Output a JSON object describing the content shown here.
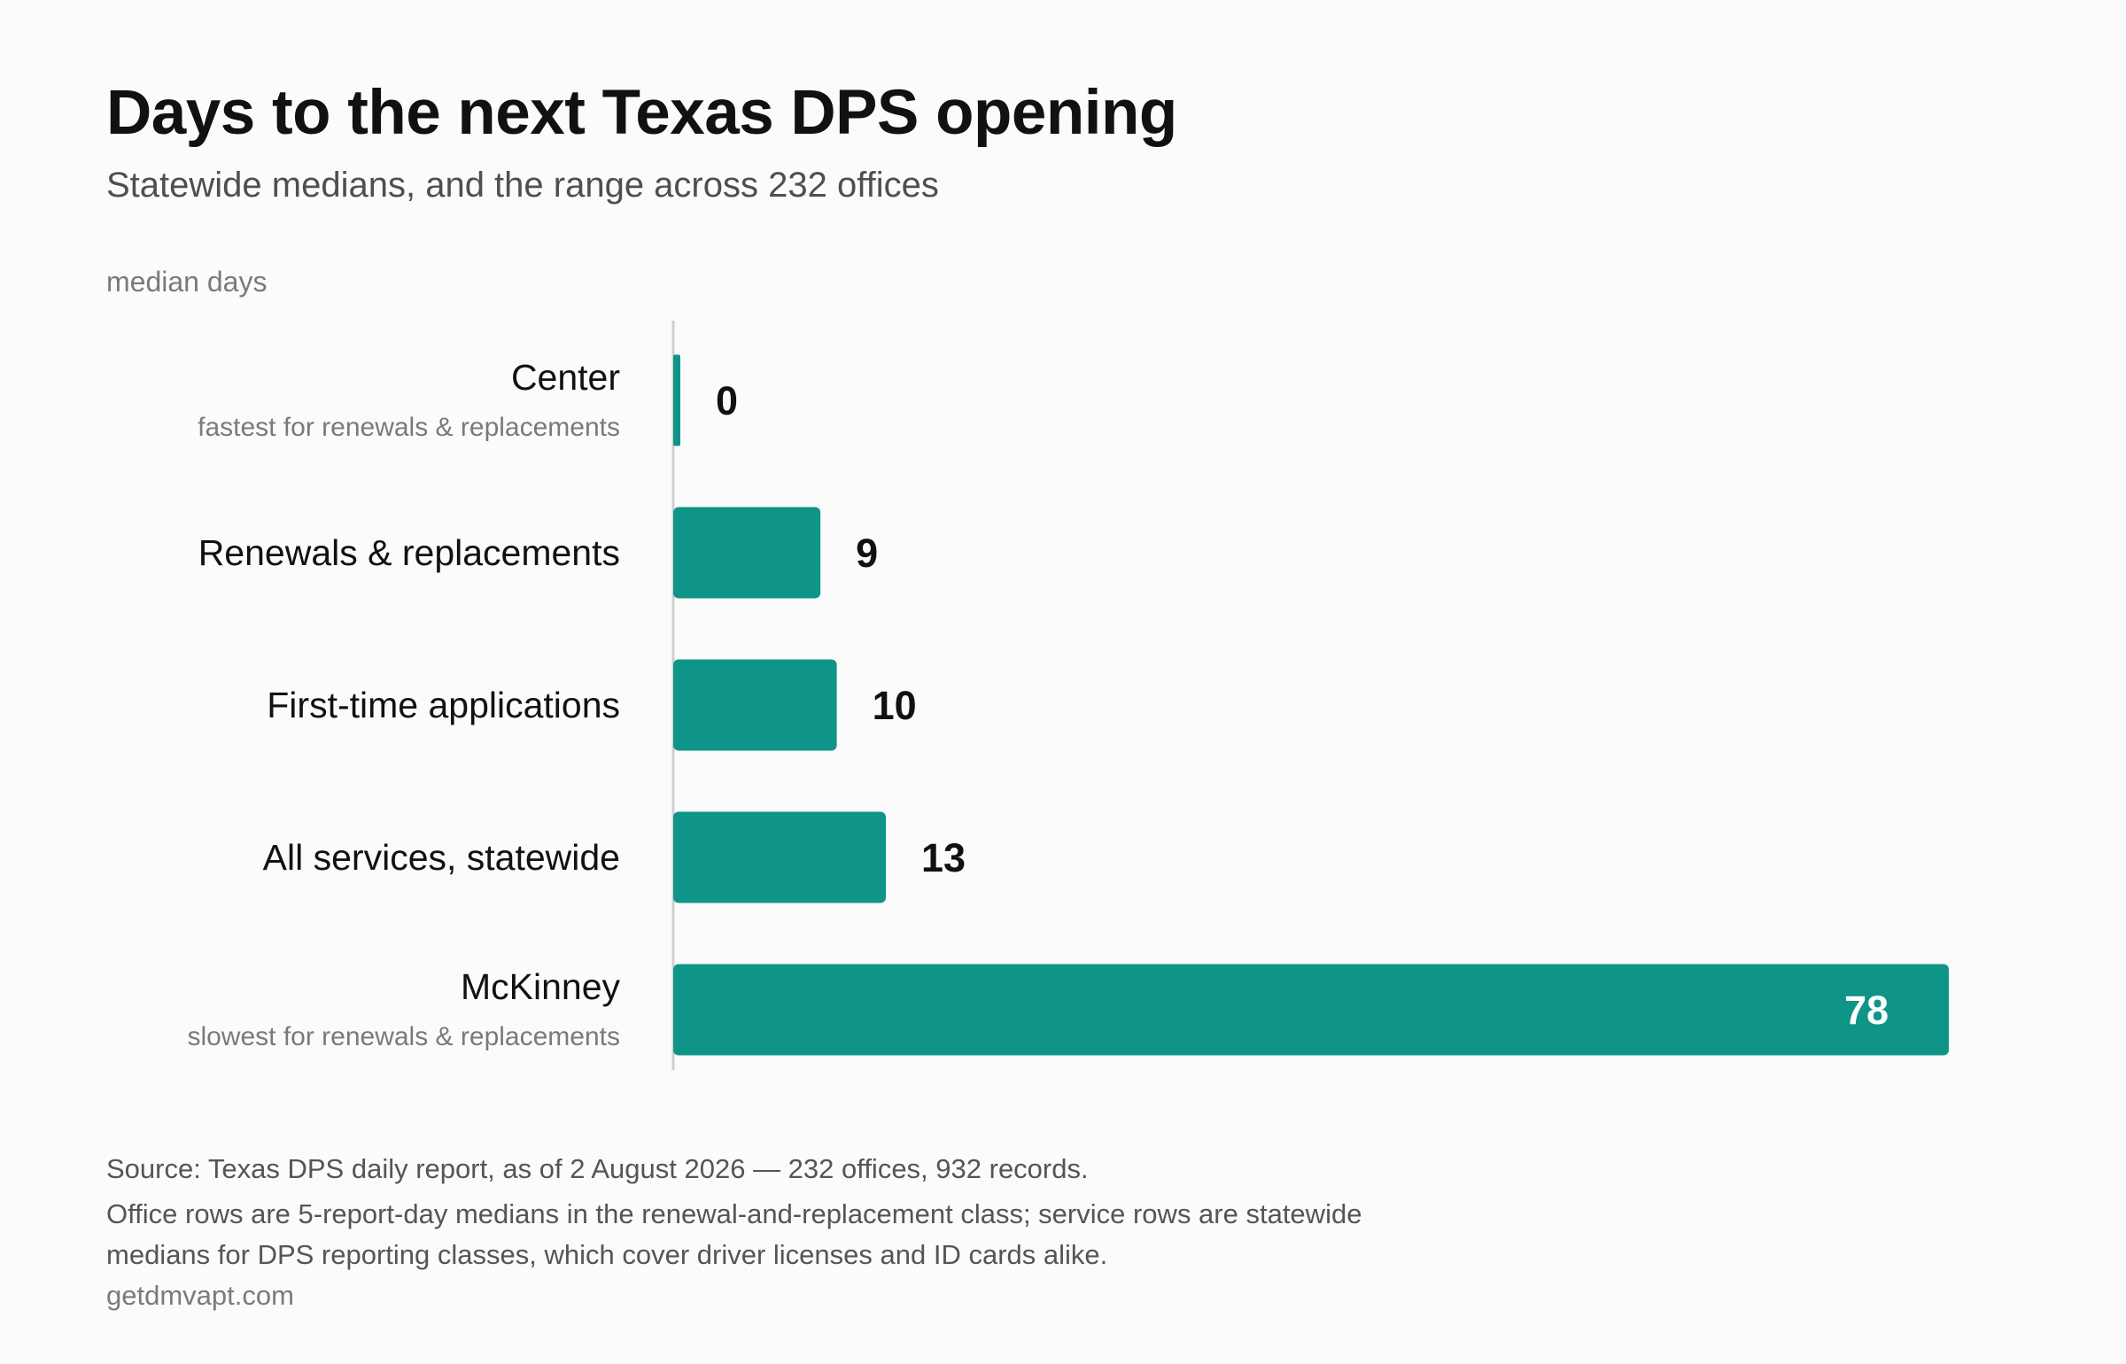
{
  "title": "Days to the next Texas DPS opening",
  "subtitle": "Statewide medians, and the range across 232 offices",
  "colors": {
    "bar": "#0e9587",
    "label": "#111111",
    "sublabel": "#7a7a7a",
    "axis": "#cfcfcf",
    "inside_label": "#ffffff"
  },
  "chart_data": {
    "type": "bar",
    "orientation": "horizontal",
    "ylabel": "median days",
    "categories": [
      "Center",
      "Renewals & replacements",
      "First-time applications",
      "All services, statewide",
      "McKinney"
    ],
    "category_notes": [
      "fastest for renewals & replacements",
      "",
      "",
      "",
      "slowest for renewals & replacements"
    ],
    "values": [
      0,
      9,
      10,
      13,
      78
    ],
    "value_labels": [
      "0",
      "9",
      "10",
      "13",
      "78"
    ],
    "xlim": [
      0,
      78
    ],
    "grid": false,
    "legend": "none"
  },
  "footer": {
    "source": "Source: Texas DPS daily report, as of 2 August 2026 — 232 offices, 932 records.",
    "note_line1": "Office rows are 5-report-day medians in the renewal-and-replacement class; service rows are statewide",
    "note_line2": "medians for DPS reporting classes, which cover driver licenses and ID cards alike.",
    "site": "getdmvapt.com"
  }
}
